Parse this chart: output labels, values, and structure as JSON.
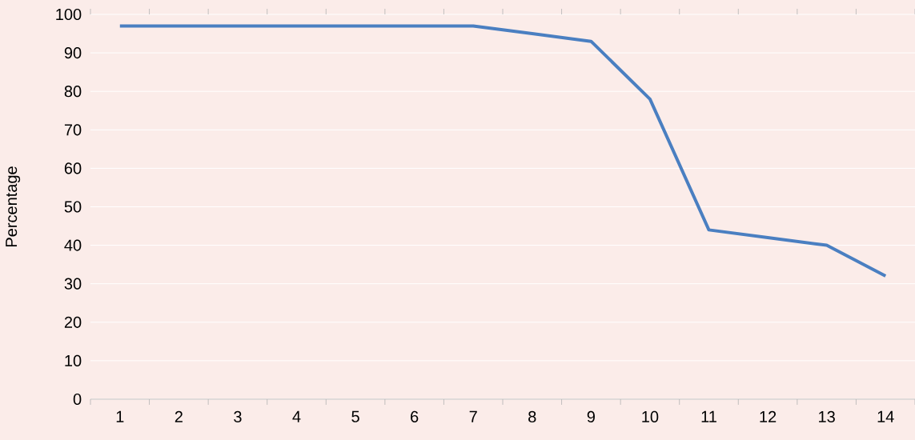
{
  "chart_data": {
    "type": "line",
    "ylabel": "Percentage",
    "categories": [
      "1",
      "2",
      "3",
      "4",
      "5",
      "6",
      "7",
      "8",
      "9",
      "10",
      "11",
      "12",
      "13",
      "14"
    ],
    "values": [
      97,
      97,
      97,
      97,
      97,
      97,
      97,
      95,
      93,
      78,
      44,
      42,
      40,
      32
    ],
    "color": "#4a7fc1",
    "ylim": [
      0,
      100
    ],
    "yticks": [
      0,
      10,
      20,
      30,
      40,
      50,
      60,
      70,
      80,
      90,
      100
    ],
    "grid": "y"
  }
}
